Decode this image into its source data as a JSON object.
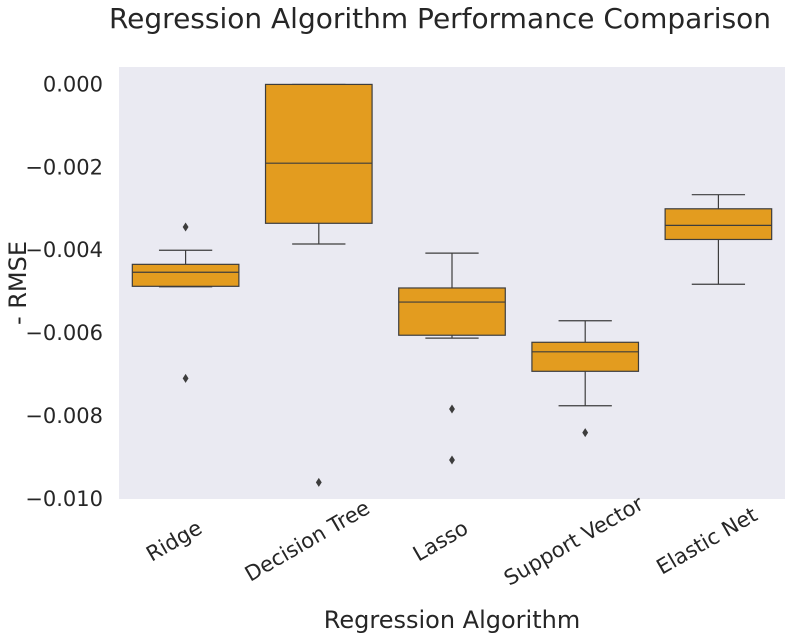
{
  "chart_data": {
    "type": "box",
    "title": "Regression Algorithm Performance Comparison",
    "xlabel": "Regression Algorithm",
    "ylabel": "- RMSE",
    "ylim": [
      -0.01,
      0.00042
    ],
    "yticks": [
      0.0,
      -0.002,
      -0.004,
      -0.006,
      -0.008,
      -0.01
    ],
    "ytick_labels": [
      "0.000",
      "−0.002",
      "−0.004",
      "−0.006",
      "−0.008",
      "−0.010"
    ],
    "grid": false,
    "box_color": "#e39c1f",
    "plot_bg": "#eaeaf2",
    "categories": [
      "Ridge",
      "Decision Tree",
      "Lasso",
      "Support Vector",
      "Elastic Net"
    ],
    "boxes": [
      {
        "category": "Ridge",
        "whisker_low": -0.00488,
        "q1": -0.00487,
        "median": -0.00453,
        "q3": -0.00434,
        "whisker_high": -0.004,
        "outliers": [
          -0.00344,
          -0.00709
        ]
      },
      {
        "category": "Decision Tree",
        "whisker_low": -0.00385,
        "q1": -0.00335,
        "median": -0.0019,
        "q3": 0.0,
        "whisker_high": 0.0,
        "outliers": [
          -0.0096
        ]
      },
      {
        "category": "Lasso",
        "whisker_low": -0.00612,
        "q1": -0.00605,
        "median": -0.00525,
        "q3": -0.00491,
        "whisker_high": -0.00407,
        "outliers": [
          -0.00783,
          -0.00906
        ]
      },
      {
        "category": "Support Vector",
        "whisker_low": -0.00775,
        "q1": -0.00692,
        "median": -0.00645,
        "q3": -0.00622,
        "whisker_high": -0.0057,
        "outliers": [
          -0.0084
        ]
      },
      {
        "category": "Elastic Net",
        "whisker_low": -0.00482,
        "q1": -0.00374,
        "median": -0.0034,
        "q3": -0.003,
        "whisker_high": -0.00266,
        "outliers": []
      }
    ]
  }
}
